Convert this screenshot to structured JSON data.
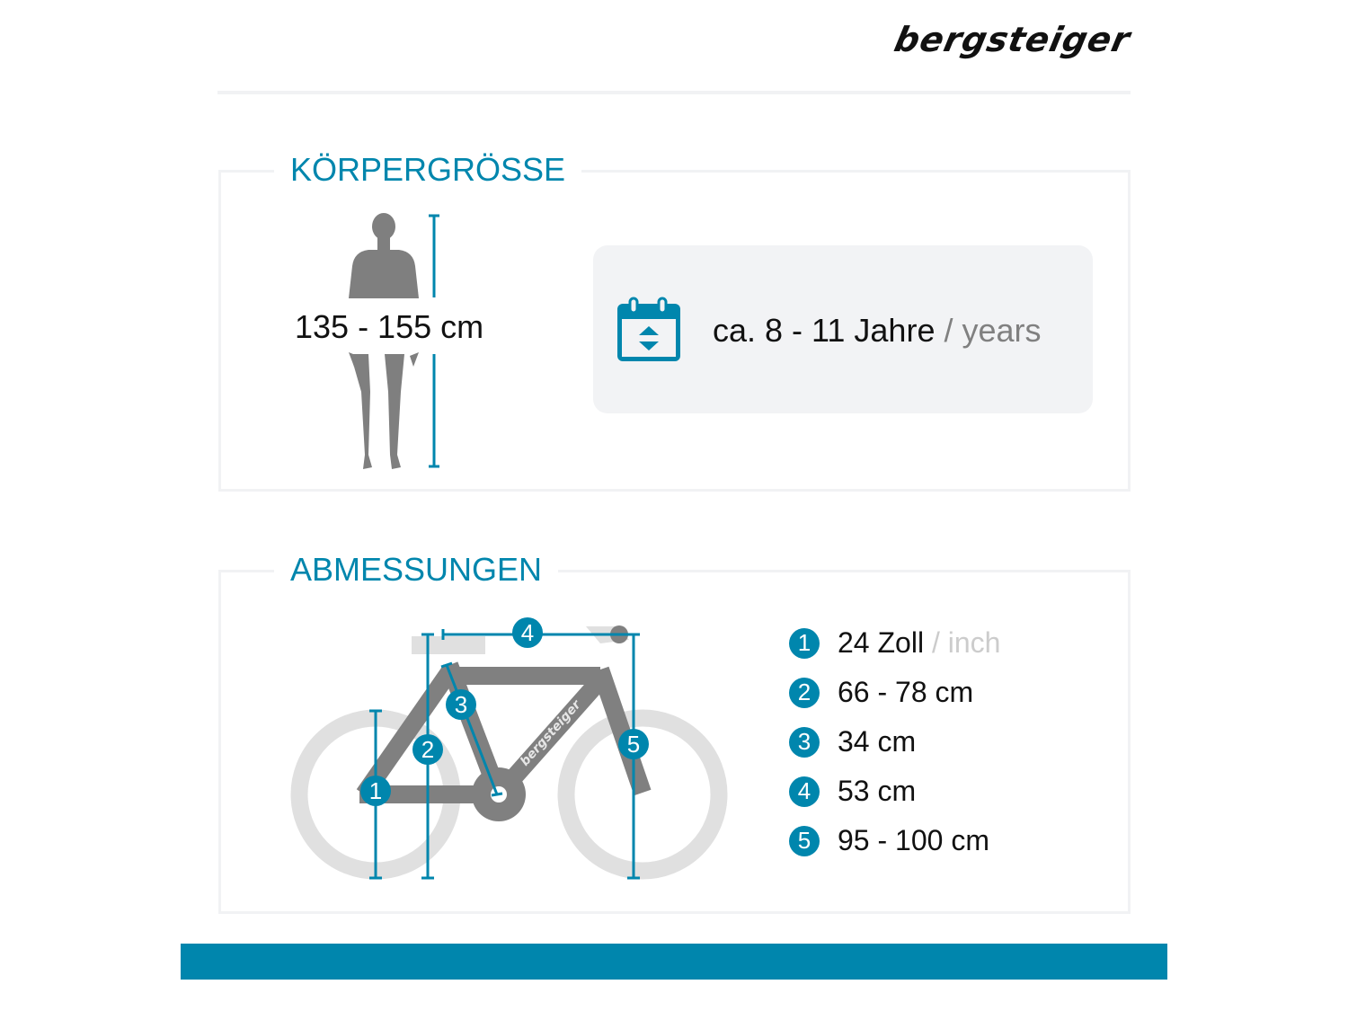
{
  "brand": {
    "logo": "bergsteiger"
  },
  "colors": {
    "accent": "#0086ad",
    "frame": "#808080",
    "wheel": "#e0e0e0",
    "panel": "#f2f3f5"
  },
  "body_height": {
    "title": "KÖRPERGRÖSSE",
    "range": "135 - 155 cm",
    "age_icon": "calendar-icon",
    "age": "ca. 8 - 11 Jahre",
    "age_suffix": "/ years"
  },
  "dimensions": {
    "title": "ABMESSUNGEN",
    "frame_logo": "bergsteiger",
    "items": [
      {
        "number": "1",
        "value": "24 Zoll",
        "suffix": "/ inch"
      },
      {
        "number": "2",
        "value": "66 - 78 cm"
      },
      {
        "number": "3",
        "value": "34 cm"
      },
      {
        "number": "4",
        "value": "53 cm"
      },
      {
        "number": "5",
        "value": "95 - 100 cm"
      }
    ]
  }
}
